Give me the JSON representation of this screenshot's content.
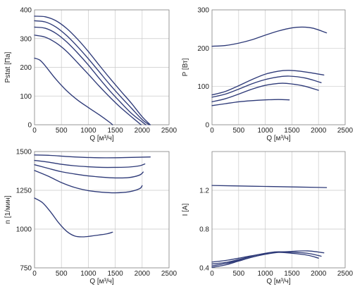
{
  "colors": {
    "line": "#2e3a78",
    "grid": "#c9c9c9",
    "axis": "#888888"
  },
  "chart_data": [
    {
      "type": "line",
      "xlabel": "Q [м³/ч]",
      "ylabel": "Pstat [Па]",
      "xlim": [
        0,
        2500
      ],
      "ylim": [
        0,
        400
      ],
      "xticks": [
        0,
        500,
        1000,
        1500,
        2000,
        2500
      ],
      "yticks": [
        0,
        100,
        200,
        300,
        400
      ],
      "xtick_labels": [
        "0",
        "500",
        "1000",
        "1500",
        "2000",
        "2500"
      ],
      "ytick_labels": [
        "0",
        "100",
        "200",
        "300",
        "400"
      ],
      "series": [
        {
          "x": [
            0,
            200,
            400,
            600,
            800,
            1000,
            1200,
            1400,
            1600,
            1800,
            2000,
            2150
          ],
          "y": [
            378,
            376,
            362,
            335,
            298,
            255,
            208,
            162,
            118,
            75,
            28,
            0
          ]
        },
        {
          "x": [
            0,
            200,
            400,
            600,
            800,
            1000,
            1200,
            1400,
            1600,
            1800,
            2000,
            2130
          ],
          "y": [
            362,
            358,
            340,
            310,
            272,
            230,
            185,
            140,
            98,
            58,
            18,
            0
          ]
        },
        {
          "x": [
            0,
            200,
            400,
            600,
            800,
            1000,
            1200,
            1400,
            1600,
            1800,
            2000,
            2070
          ],
          "y": [
            340,
            336,
            318,
            288,
            250,
            208,
            162,
            118,
            78,
            40,
            10,
            0
          ]
        },
        {
          "x": [
            0,
            200,
            400,
            600,
            800,
            1000,
            1200,
            1400,
            1600,
            1800,
            1980
          ],
          "y": [
            312,
            305,
            285,
            255,
            216,
            176,
            135,
            96,
            60,
            28,
            0
          ]
        },
        {
          "x": [
            0,
            100,
            200,
            400,
            600,
            800,
            1000,
            1200,
            1400,
            1450
          ],
          "y": [
            232,
            225,
            205,
            158,
            118,
            86,
            60,
            35,
            8,
            0
          ]
        }
      ]
    },
    {
      "type": "line",
      "xlabel": "Q [м³/ч]",
      "ylabel": "P [Вт]",
      "xlim": [
        0,
        2500
      ],
      "ylim": [
        0,
        300
      ],
      "xticks": [
        0,
        500,
        1000,
        1500,
        2000,
        2500
      ],
      "yticks": [
        0,
        100,
        200,
        300
      ],
      "xtick_labels": [
        "0",
        "500",
        "1000",
        "1500",
        "2000",
        "2500"
      ],
      "ytick_labels": [
        "0",
        "100",
        "200",
        "300"
      ],
      "series": [
        {
          "x": [
            0,
            250,
            500,
            750,
            1000,
            1250,
            1500,
            1700,
            1900,
            2150
          ],
          "y": [
            205,
            207,
            213,
            222,
            234,
            245,
            253,
            255,
            252,
            240
          ]
        },
        {
          "x": [
            0,
            250,
            500,
            750,
            1000,
            1250,
            1450,
            1750,
            2100
          ],
          "y": [
            78,
            87,
            102,
            118,
            132,
            140,
            142,
            138,
            130
          ]
        },
        {
          "x": [
            0,
            250,
            500,
            750,
            1000,
            1250,
            1450,
            1750,
            2050
          ],
          "y": [
            72,
            80,
            93,
            107,
            118,
            125,
            127,
            122,
            110
          ]
        },
        {
          "x": [
            0,
            250,
            500,
            750,
            1000,
            1250,
            1400,
            1700,
            2000
          ],
          "y": [
            60,
            68,
            80,
            93,
            103,
            108,
            108,
            102,
            90
          ]
        },
        {
          "x": [
            0,
            250,
            500,
            750,
            1000,
            1250,
            1450
          ],
          "y": [
            50,
            55,
            60,
            63,
            65,
            66,
            65
          ]
        }
      ]
    },
    {
      "type": "line",
      "xlabel": "Q [м³/ч]",
      "ylabel": "n [1/мин]",
      "xlim": [
        0,
        2500
      ],
      "ylim": [
        750,
        1500
      ],
      "xticks": [
        0,
        500,
        1000,
        1500,
        2000,
        2500
      ],
      "yticks": [
        750,
        1000,
        1250,
        1500
      ],
      "xtick_labels": [
        "0",
        "500",
        "1000",
        "1500",
        "2000",
        "2500"
      ],
      "ytick_labels": [
        "750",
        "1000",
        "1250",
        "1500"
      ],
      "series": [
        {
          "x": [
            0,
            300,
            600,
            900,
            1200,
            1500,
            1800,
            2150
          ],
          "y": [
            1478,
            1475,
            1468,
            1463,
            1460,
            1460,
            1462,
            1465
          ]
        },
        {
          "x": [
            0,
            250,
            500,
            750,
            1000,
            1250,
            1500,
            1750,
            1950,
            2050
          ],
          "y": [
            1443,
            1432,
            1418,
            1408,
            1402,
            1398,
            1398,
            1400,
            1408,
            1420
          ]
        },
        {
          "x": [
            0,
            250,
            500,
            750,
            1000,
            1250,
            1500,
            1750,
            1950,
            2020
          ],
          "y": [
            1415,
            1392,
            1370,
            1355,
            1343,
            1335,
            1330,
            1332,
            1348,
            1368
          ]
        },
        {
          "x": [
            0,
            250,
            500,
            750,
            1000,
            1250,
            1500,
            1750,
            1950,
            2000
          ],
          "y": [
            1378,
            1342,
            1300,
            1268,
            1248,
            1238,
            1234,
            1240,
            1260,
            1280
          ]
        },
        {
          "x": [
            0,
            150,
            300,
            450,
            600,
            750,
            900,
            1050,
            1200,
            1350,
            1450
          ],
          "y": [
            1200,
            1170,
            1110,
            1040,
            985,
            955,
            950,
            955,
            962,
            970,
            980
          ]
        }
      ]
    },
    {
      "type": "line",
      "xlabel": "Q [м³/ч]",
      "ylabel": "I [A]",
      "xlim": [
        0,
        2500
      ],
      "ylim": [
        0.4,
        1.6
      ],
      "xticks": [
        0,
        500,
        1000,
        1500,
        2000,
        2500
      ],
      "yticks": [
        0.4,
        0.8,
        1.2
      ],
      "xtick_labels": [
        "0",
        "500",
        "1000",
        "1500",
        "2000",
        "2500"
      ],
      "ytick_labels": [
        "0.4",
        "0.8",
        "1.2"
      ],
      "series": [
        {
          "x": [
            0,
            500,
            1000,
            1500,
            2000,
            2150
          ],
          "y": [
            1.25,
            1.245,
            1.24,
            1.235,
            1.23,
            1.228
          ]
        },
        {
          "x": [
            0,
            300,
            600,
            900,
            1200,
            1500,
            1800,
            2100
          ],
          "y": [
            0.46,
            0.48,
            0.51,
            0.54,
            0.56,
            0.57,
            0.575,
            0.555
          ]
        },
        {
          "x": [
            0,
            300,
            600,
            900,
            1200,
            1500,
            1800,
            2050
          ],
          "y": [
            0.44,
            0.46,
            0.5,
            0.54,
            0.565,
            0.56,
            0.55,
            0.52
          ]
        },
        {
          "x": [
            0,
            300,
            600,
            900,
            1200,
            1500,
            1800,
            2000
          ],
          "y": [
            0.42,
            0.45,
            0.49,
            0.53,
            0.56,
            0.55,
            0.53,
            0.5
          ]
        },
        {
          "x": [
            0,
            250,
            500,
            750,
            1000,
            1250,
            1450
          ],
          "y": [
            0.405,
            0.43,
            0.47,
            0.51,
            0.54,
            0.56,
            0.565
          ]
        }
      ]
    }
  ]
}
